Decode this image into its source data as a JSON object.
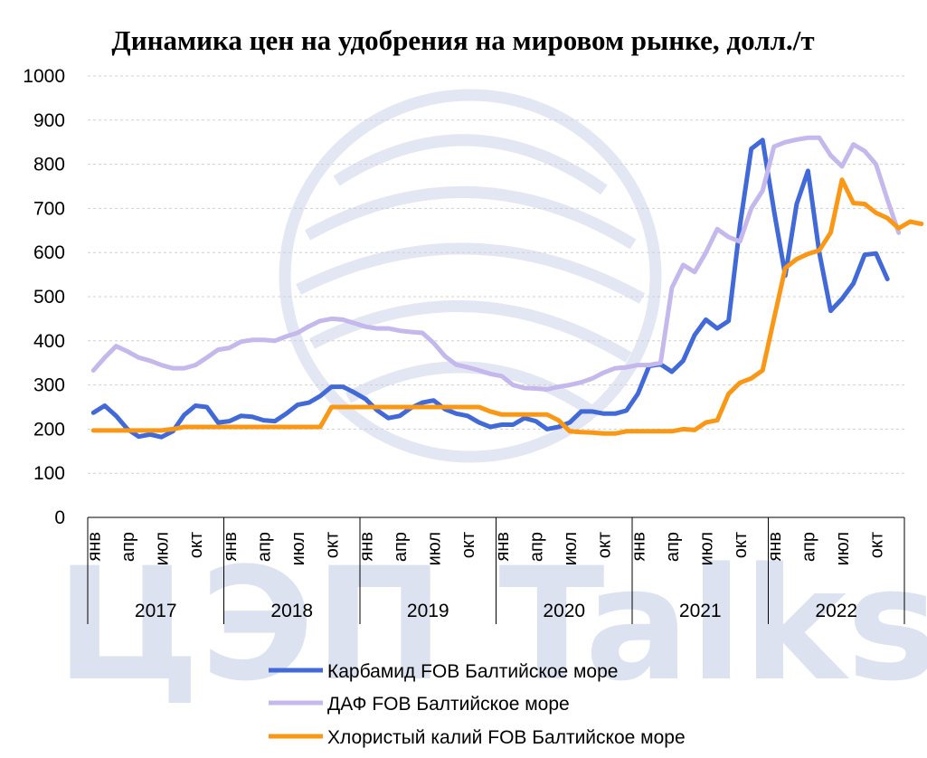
{
  "chart_data": {
    "type": "line",
    "title": "Динамика цен на удобрения на мировом рынке, долл./т",
    "xlabel": "",
    "ylabel": "",
    "ylim": [
      0,
      1000
    ],
    "yticks": [
      0,
      100,
      200,
      300,
      400,
      500,
      600,
      700,
      800,
      900,
      1000
    ],
    "grid": true,
    "legend_position": "bottom",
    "years": [
      "2017",
      "2018",
      "2019",
      "2020",
      "2021",
      "2022"
    ],
    "month_labels": [
      "янв",
      "апр",
      "июл",
      "окт"
    ],
    "series": [
      {
        "name": "Карбамид FOB Балтийское море",
        "color": "#4169d8",
        "values": [
          237,
          253,
          230,
          200,
          183,
          188,
          182,
          195,
          232,
          253,
          250,
          215,
          218,
          230,
          228,
          220,
          218,
          235,
          255,
          260,
          275,
          296,
          296,
          283,
          268,
          243,
          225,
          230,
          248,
          260,
          265,
          245,
          235,
          230,
          215,
          205,
          210,
          210,
          225,
          218,
          200,
          205,
          215,
          240,
          240,
          235,
          235,
          242,
          280,
          343,
          347,
          330,
          355,
          413,
          448,
          428,
          445,
          660,
          835,
          855,
          695,
          548,
          710,
          785,
          600,
          468,
          495,
          530,
          595,
          598,
          540
        ]
      },
      {
        "name": "ДАФ FOB Балтийское море",
        "color": "#c5b8ec",
        "values": [
          333,
          362,
          388,
          376,
          362,
          355,
          345,
          338,
          338,
          345,
          362,
          380,
          384,
          398,
          402,
          402,
          400,
          410,
          418,
          433,
          445,
          450,
          448,
          440,
          432,
          428,
          428,
          423,
          420,
          418,
          395,
          365,
          346,
          340,
          333,
          325,
          320,
          300,
          293,
          292,
          290,
          296,
          300,
          306,
          315,
          328,
          338,
          340,
          345,
          345,
          350,
          520,
          572,
          556,
          600,
          653,
          635,
          625,
          700,
          740,
          840,
          850,
          856,
          860,
          860,
          820,
          795,
          845,
          830,
          800,
          720,
          645
        ]
      },
      {
        "name": "Хлористый калий FOB Балтийское море",
        "color": "#fa9715",
        "values": [
          197,
          197,
          197,
          197,
          197,
          197,
          197,
          200,
          205,
          205,
          205,
          205,
          205,
          205,
          205,
          205,
          205,
          205,
          205,
          205,
          205,
          250,
          250,
          250,
          250,
          250,
          250,
          250,
          250,
          250,
          250,
          250,
          250,
          250,
          250,
          240,
          233,
          233,
          233,
          233,
          233,
          220,
          195,
          193,
          192,
          190,
          190,
          195,
          195,
          195,
          195,
          195,
          200,
          198,
          215,
          220,
          280,
          305,
          315,
          333,
          450,
          565,
          585,
          597,
          605,
          645,
          765,
          712,
          710,
          690,
          678,
          655,
          670,
          665
        ]
      }
    ]
  },
  "watermark": "ЦЭП Talks"
}
